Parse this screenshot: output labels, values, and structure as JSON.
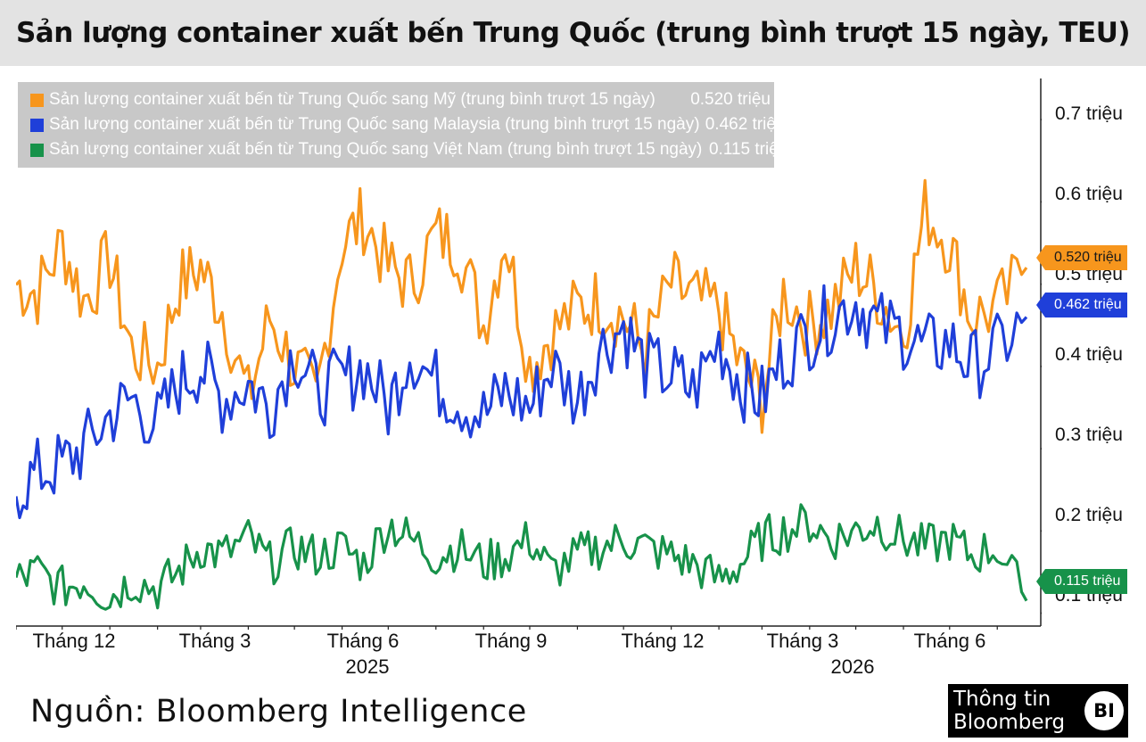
{
  "title": "Sản lượng container xuất bến Trung Quốc (trung bình trượt 15 ngày, TEU)",
  "source": "Nguồn: Bloomberg Intelligence",
  "logo": {
    "line1": "Thông tin",
    "line2": "Bloomberg",
    "mark": "BI"
  },
  "colors": {
    "usa": "#f7961d",
    "malaysia": "#1f3fd9",
    "vietnam": "#17924a",
    "legend_bg": "#c8c8c8"
  },
  "chart_data": {
    "type": "line",
    "title": "Sản lượng container xuất bến Trung Quốc (trung bình trượt 15 ngày, TEU)",
    "xlabel": "",
    "ylabel": "",
    "y_unit": "triệu",
    "ylim": [
      0.08,
      0.75
    ],
    "yticks": [
      {
        "value": 0.7,
        "label": "0.7 triệu"
      },
      {
        "value": 0.6,
        "label": "0.6 triệu"
      },
      {
        "value": 0.5,
        "label": "0.5 triệu"
      },
      {
        "value": 0.4,
        "label": "0.4 triệu"
      },
      {
        "value": 0.3,
        "label": "0.3 triệu"
      },
      {
        "value": 0.2,
        "label": "0.2 triệu"
      },
      {
        "value": 0.1,
        "label": "0.1 triệu"
      }
    ],
    "x_start": "2024-11-01",
    "x_end": "2026-08-20",
    "xticks": [
      {
        "date": "2024-12-01",
        "label": "Tháng 12"
      },
      {
        "date": "2025-03-01",
        "label": "Tháng 3"
      },
      {
        "date": "2025-06-01",
        "label": "Tháng 6"
      },
      {
        "date": "2025-09-01",
        "label": "Tháng 9"
      },
      {
        "date": "2025-12-01",
        "label": "Tháng 12"
      },
      {
        "date": "2026-03-01",
        "label": "Tháng 3"
      },
      {
        "date": "2026-06-01",
        "label": "Tháng 6"
      }
    ],
    "years": [
      {
        "date": "2025-06-01",
        "label": "2025"
      },
      {
        "date": "2026-04-20",
        "label": "2026"
      }
    ],
    "year_dividers": [
      "2025-01-01",
      "2026-01-01"
    ],
    "legend_position": "top-left",
    "grid": false,
    "series": [
      {
        "name": "Sản lượng container xuất bến từ Trung Quốc sang Mỹ (trung bình trượt 15 ngày)",
        "key": "usa",
        "last_value": "0.520 triệu",
        "x": [
          "2024-11-01",
          "2024-11-15",
          "2024-12-01",
          "2024-12-15",
          "2025-01-01",
          "2025-01-15",
          "2025-02-01",
          "2025-02-15",
          "2025-03-01",
          "2025-03-15",
          "2025-04-01",
          "2025-04-15",
          "2025-05-01",
          "2025-05-15",
          "2025-06-01",
          "2025-06-15",
          "2025-07-01",
          "2025-07-15",
          "2025-08-01",
          "2025-08-15",
          "2025-09-01",
          "2025-09-15",
          "2025-10-01",
          "2025-10-15",
          "2025-11-01",
          "2025-11-15",
          "2025-12-01",
          "2025-12-15",
          "2026-01-01",
          "2026-01-15",
          "2026-02-01",
          "2026-02-15",
          "2026-03-01",
          "2026-03-15",
          "2026-04-01",
          "2026-04-15",
          "2026-05-01",
          "2026-05-15",
          "2026-06-01",
          "2026-06-15",
          "2026-07-01",
          "2026-07-15",
          "2026-08-01",
          "2026-08-20"
        ],
        "values": [
          0.5,
          0.49,
          0.55,
          0.48,
          0.53,
          0.42,
          0.4,
          0.5,
          0.52,
          0.47,
          0.36,
          0.46,
          0.4,
          0.36,
          0.55,
          0.58,
          0.52,
          0.5,
          0.56,
          0.55,
          0.45,
          0.56,
          0.4,
          0.44,
          0.47,
          0.48,
          0.46,
          0.42,
          0.5,
          0.48,
          0.47,
          0.4,
          0.36,
          0.49,
          0.45,
          0.47,
          0.52,
          0.49,
          0.44,
          0.59,
          0.55,
          0.46,
          0.47,
          0.52
        ]
      },
      {
        "name": "Sản lượng container xuất bến từ Trung Quốc sang Malaysia (trung bình trượt 15 ngày)",
        "key": "malaysia",
        "last_value": "0.462 triệu",
        "x": [
          "2024-11-01",
          "2024-11-15",
          "2024-12-01",
          "2024-12-15",
          "2025-01-01",
          "2025-01-15",
          "2025-02-01",
          "2025-02-15",
          "2025-03-01",
          "2025-03-15",
          "2025-04-01",
          "2025-04-15",
          "2025-05-01",
          "2025-05-15",
          "2025-06-01",
          "2025-06-15",
          "2025-07-01",
          "2025-07-15",
          "2025-08-01",
          "2025-08-15",
          "2025-09-01",
          "2025-09-15",
          "2025-10-01",
          "2025-10-15",
          "2025-11-01",
          "2025-11-15",
          "2025-12-01",
          "2025-12-15",
          "2026-01-01",
          "2026-01-15",
          "2026-02-01",
          "2026-02-15",
          "2026-03-01",
          "2026-03-15",
          "2026-04-01",
          "2026-04-15",
          "2026-05-01",
          "2026-05-15",
          "2026-06-01",
          "2026-06-15",
          "2026-07-01",
          "2026-07-15",
          "2026-08-01",
          "2026-08-20"
        ],
        "values": [
          0.25,
          0.27,
          0.28,
          0.3,
          0.34,
          0.36,
          0.33,
          0.38,
          0.4,
          0.36,
          0.38,
          0.35,
          0.42,
          0.37,
          0.38,
          0.4,
          0.35,
          0.42,
          0.38,
          0.36,
          0.34,
          0.37,
          0.35,
          0.4,
          0.36,
          0.42,
          0.45,
          0.4,
          0.39,
          0.37,
          0.43,
          0.38,
          0.36,
          0.41,
          0.44,
          0.46,
          0.48,
          0.45,
          0.44,
          0.42,
          0.43,
          0.4,
          0.42,
          0.46
        ]
      },
      {
        "name": "Sản lượng container xuất bến từ Trung Quốc sang Việt Nam (trung bình trượt 15 ngày)",
        "key": "vietnam",
        "last_value": "0.115 triệu",
        "x": [
          "2024-11-01",
          "2024-11-15",
          "2024-12-01",
          "2024-12-15",
          "2025-01-01",
          "2025-01-15",
          "2025-02-01",
          "2025-02-15",
          "2025-03-01",
          "2025-03-15",
          "2025-04-01",
          "2025-04-15",
          "2025-05-01",
          "2025-05-15",
          "2025-06-01",
          "2025-06-15",
          "2025-07-01",
          "2025-07-15",
          "2025-08-01",
          "2025-08-15",
          "2025-09-01",
          "2025-09-15",
          "2025-10-01",
          "2025-10-15",
          "2025-11-01",
          "2025-11-15",
          "2025-12-01",
          "2025-12-15",
          "2026-01-01",
          "2026-01-15",
          "2026-02-01",
          "2026-02-15",
          "2026-03-01",
          "2026-03-15",
          "2026-04-01",
          "2026-04-15",
          "2026-05-01",
          "2026-05-15",
          "2026-06-01",
          "2026-06-15",
          "2026-07-01",
          "2026-07-15",
          "2026-08-01",
          "2026-08-20"
        ],
        "values": [
          0.14,
          0.15,
          0.13,
          0.14,
          0.12,
          0.14,
          0.13,
          0.15,
          0.18,
          0.17,
          0.19,
          0.16,
          0.18,
          0.17,
          0.18,
          0.16,
          0.21,
          0.19,
          0.17,
          0.18,
          0.16,
          0.17,
          0.19,
          0.15,
          0.17,
          0.18,
          0.19,
          0.18,
          0.17,
          0.16,
          0.14,
          0.16,
          0.19,
          0.2,
          0.21,
          0.19,
          0.2,
          0.21,
          0.19,
          0.18,
          0.19,
          0.17,
          0.18,
          0.115
        ]
      }
    ]
  }
}
